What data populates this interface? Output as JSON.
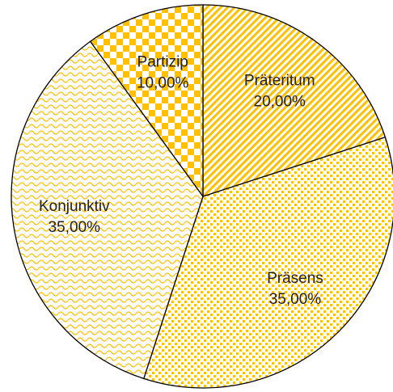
{
  "chart_data": {
    "type": "pie",
    "categories": [
      "Präteritum",
      "Präsens",
      "Konjunktiv",
      "Partizip"
    ],
    "values": [
      20,
      35,
      35,
      10
    ],
    "value_labels": [
      "20,00%",
      "35,00%",
      "35,00%",
      "10,00%"
    ],
    "color": "#FFC000"
  }
}
